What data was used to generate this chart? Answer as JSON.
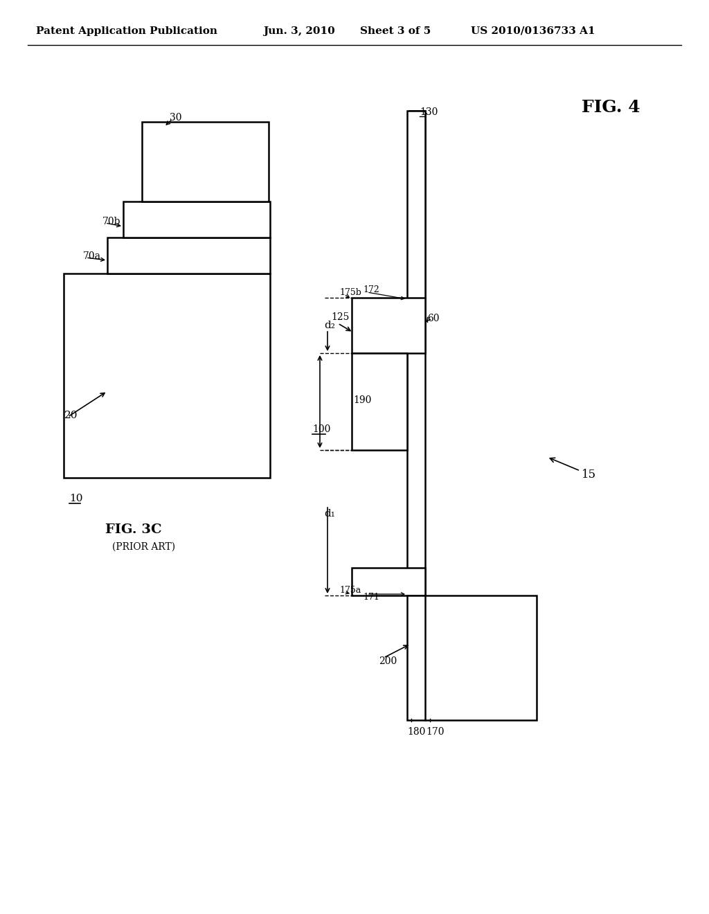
{
  "bg_color": "#ffffff",
  "header_text": "Patent Application Publication",
  "header_date": "Jun. 3, 2010",
  "header_sheet": "Sheet 3 of 5",
  "header_patent": "US 2010/0136733 A1",
  "fig3c_label": "FIG. 3C",
  "fig3c_sub": "(PRIOR ART)",
  "fig4_label": "FIG. 4",
  "lw": 1.8
}
